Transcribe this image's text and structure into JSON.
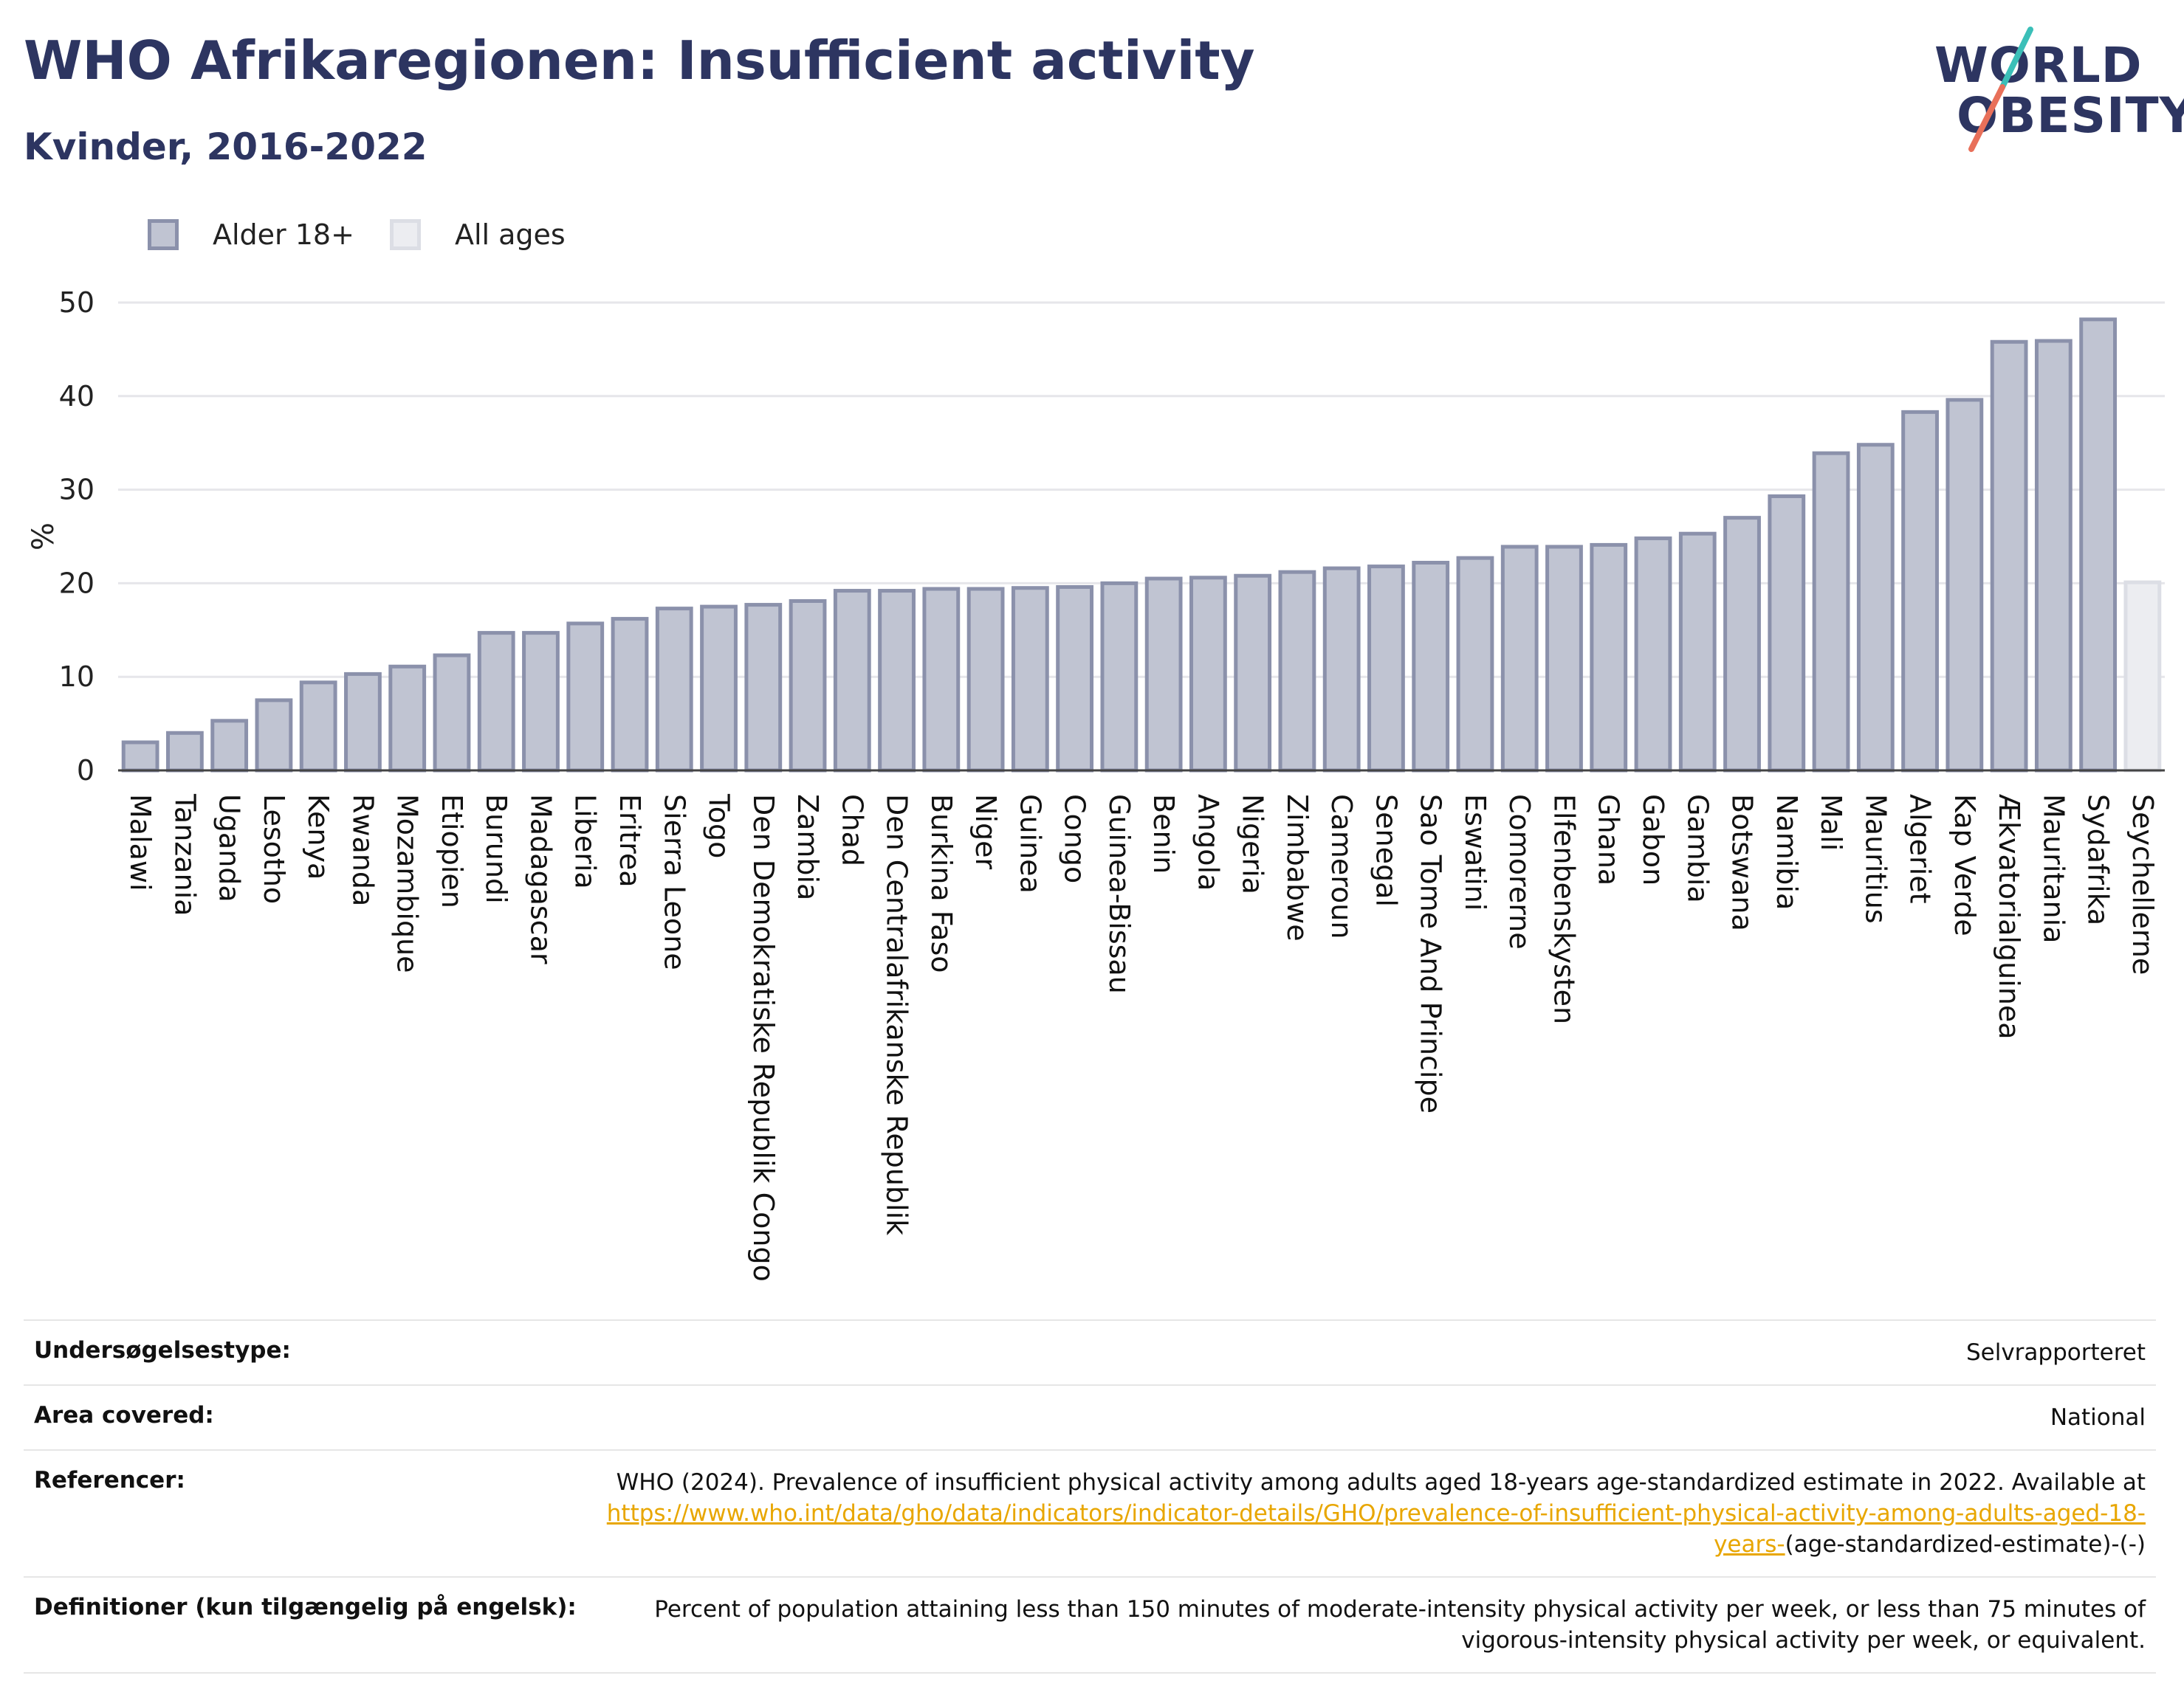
{
  "header": {
    "title": "WHO Afrikaregionen: Insufficient activity",
    "subtitle": "Kvinder, 2016-2022"
  },
  "logo": {
    "line1": "WORLD",
    "line2": "OBESITY"
  },
  "colors": {
    "title": "#2d3561",
    "bar_fill": "#c0c4d2",
    "bar_stroke": "#8b91ab",
    "allages_fill": "#ecedf1",
    "allages_stroke": "#dcdee5",
    "logo_slash_teal": "#3bbfb8",
    "logo_slash_coral": "#e8705a",
    "link": "#e8a600"
  },
  "legend": [
    {
      "label": "Alder 18+",
      "series": "adult"
    },
    {
      "label": "All ages",
      "series": "allages"
    }
  ],
  "chart_data": {
    "type": "bar",
    "ylabel": "%",
    "ylim": [
      0,
      50
    ],
    "yticks": [
      0,
      10,
      20,
      30,
      40,
      50
    ],
    "grid": true,
    "legend_position": "top-left",
    "categories": [
      "Malawi",
      "Tanzania",
      "Uganda",
      "Lesotho",
      "Kenya",
      "Rwanda",
      "Mozambique",
      "Etiopien",
      "Burundi",
      "Madagascar",
      "Liberia",
      "Eritrea",
      "Sierra Leone",
      "Togo",
      "Den Demokratiske Republik Congo",
      "Zambia",
      "Chad",
      "Den Centralafrikanske Republik",
      "Burkina Faso",
      "Niger",
      "Guinea",
      "Congo",
      "Guinea-Bissau",
      "Benin",
      "Angola",
      "Nigeria",
      "Zimbabwe",
      "Cameroun",
      "Senegal",
      "Sao Tome And Principe",
      "Eswatini",
      "Comorerne",
      "Elfenbenskysten",
      "Ghana",
      "Gabon",
      "Gambia",
      "Botswana",
      "Namibia",
      "Mali",
      "Mauritius",
      "Algeriet",
      "Kap Verde",
      "Ækvatorialguinea",
      "Mauritania",
      "Sydafrika",
      "Seychellerne"
    ],
    "values": [
      3.0,
      4.0,
      5.3,
      7.5,
      9.4,
      10.3,
      11.1,
      12.3,
      14.7,
      14.7,
      15.7,
      16.2,
      17.3,
      17.5,
      17.7,
      18.1,
      19.2,
      19.2,
      19.4,
      19.4,
      19.5,
      19.6,
      20.0,
      20.5,
      20.6,
      20.8,
      21.2,
      21.6,
      21.8,
      22.2,
      22.7,
      23.9,
      23.9,
      24.1,
      24.8,
      25.3,
      27.0,
      29.3,
      33.9,
      34.8,
      38.3,
      39.6,
      45.8,
      45.9,
      48.2,
      20.1
    ],
    "series_of_bar": [
      "adult",
      "adult",
      "adult",
      "adult",
      "adult",
      "adult",
      "adult",
      "adult",
      "adult",
      "adult",
      "adult",
      "adult",
      "adult",
      "adult",
      "adult",
      "adult",
      "adult",
      "adult",
      "adult",
      "adult",
      "adult",
      "adult",
      "adult",
      "adult",
      "adult",
      "adult",
      "adult",
      "adult",
      "adult",
      "adult",
      "adult",
      "adult",
      "adult",
      "adult",
      "adult",
      "adult",
      "adult",
      "adult",
      "adult",
      "adult",
      "adult",
      "adult",
      "adult",
      "adult",
      "adult",
      "allages"
    ]
  },
  "info": [
    {
      "key": "Undersøgelsestype:",
      "value": "Selvrapporteret"
    },
    {
      "key": "Area covered:",
      "value": "National"
    },
    {
      "key": "Referencer:",
      "value_prefix": "WHO (2024). Prevalence of insufficient physical activity among adults aged 18-years age-standardized estimate in 2022. Available at ",
      "link": "https://www.who.int/data/gho/data/indicators/indicator-details/GHO/prevalence-of-insufficient-physical-activity-among-adults-aged-18-years-",
      "value_suffix": "(age-standardized-estimate)-(-)"
    },
    {
      "key": "Definitioner (kun tilgængelig på engelsk):",
      "value": "Percent of population attaining less than 150 minutes of moderate-intensity physical activity per week, or less than 75 minutes of vigorous-intensity physical activity per week, or equivalent."
    }
  ]
}
